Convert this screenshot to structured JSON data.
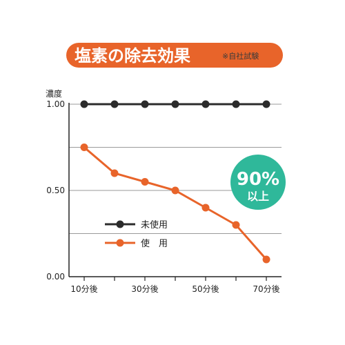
{
  "header": {
    "title": "塩素の除去効果",
    "note": "※自社試験"
  },
  "badge": {
    "value": "90%",
    "suffix": "以上"
  },
  "colors": {
    "title_bg": "#e8642a",
    "unused_series": "#2b2b2b",
    "used_series": "#e8642a",
    "badge_bg": "#2fb89a",
    "grid": "#9a9a9a"
  },
  "chart_data": {
    "type": "line",
    "ylabel": "濃度",
    "ylim": [
      0,
      1.0
    ],
    "yticks": [
      "0.00",
      "0.50",
      "1.00"
    ],
    "ytick_values": [
      0,
      0.5,
      1.0
    ],
    "gridlines": [
      0.25,
      0.5,
      0.75,
      1.0
    ],
    "x": [
      10,
      20,
      30,
      40,
      50,
      60,
      70
    ],
    "xticks": [
      "10分後",
      "30分後",
      "50分後",
      "70分後"
    ],
    "xtick_values": [
      10,
      30,
      50,
      70
    ],
    "series": [
      {
        "name": "未使用",
        "values": [
          1.0,
          1.0,
          1.0,
          1.0,
          1.0,
          1.0,
          1.0
        ]
      },
      {
        "name": "使　用",
        "values": [
          0.75,
          0.6,
          0.55,
          0.5,
          0.4,
          0.3,
          0.1
        ]
      }
    ],
    "legend": "left"
  }
}
